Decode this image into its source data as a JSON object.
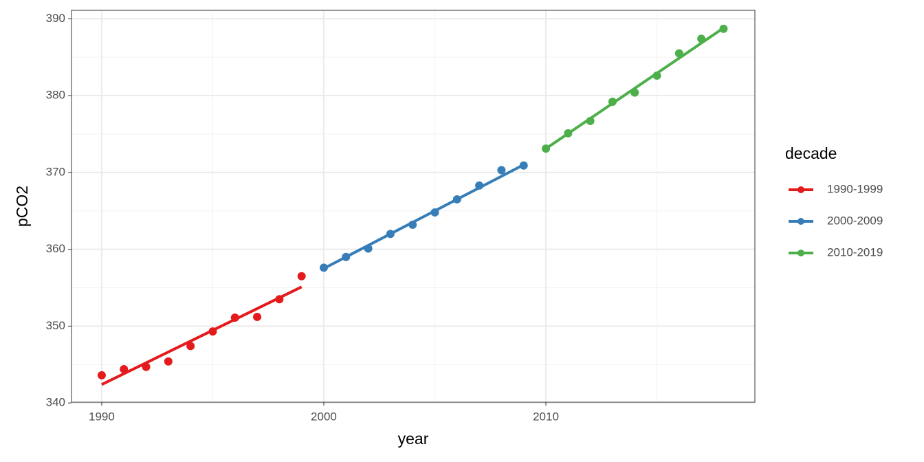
{
  "chart_data": {
    "type": "scatter",
    "x_label": "year",
    "y_label": "pCO2",
    "legend_title": "decade",
    "xlim": [
      1988.64,
      2019.41
    ],
    "ylim": [
      340.1,
      391.1
    ],
    "xticks": [
      1990,
      2000,
      2010
    ],
    "yticks": [
      340,
      350,
      360,
      370,
      380,
      390
    ],
    "xminor": [
      1995,
      2005,
      2015
    ],
    "yminor": [
      345,
      355,
      365,
      375,
      385
    ],
    "grid": true,
    "legend": "right",
    "series": [
      {
        "name": "1990-1999",
        "color": "#e41a1c",
        "x": [
          1990,
          1991,
          1992,
          1993,
          1994,
          1995,
          1996,
          1997,
          1998,
          1999
        ],
        "values": [
          343.6,
          344.4,
          344.7,
          345.4,
          347.4,
          349.3,
          351.1,
          351.2,
          353.5,
          356.5
        ],
        "trend": [
          342.4,
          355.1
        ]
      },
      {
        "name": "2000-2009",
        "color": "#377eb8",
        "x": [
          2000,
          2001,
          2002,
          2003,
          2004,
          2005,
          2006,
          2007,
          2008,
          2009
        ],
        "values": [
          357.6,
          359.0,
          360.1,
          362.0,
          363.2,
          364.8,
          366.5,
          368.3,
          370.3,
          370.9
        ],
        "trend": [
          357.5,
          371.0
        ]
      },
      {
        "name": "2010-2019",
        "color": "#4daf4a",
        "x": [
          2010,
          2011,
          2012,
          2013,
          2014,
          2015,
          2016,
          2017,
          2018
        ],
        "values": [
          373.1,
          375.1,
          376.7,
          379.2,
          380.4,
          382.6,
          385.5,
          387.4,
          388.7
        ],
        "trend": [
          373.1,
          388.8
        ]
      }
    ]
  }
}
